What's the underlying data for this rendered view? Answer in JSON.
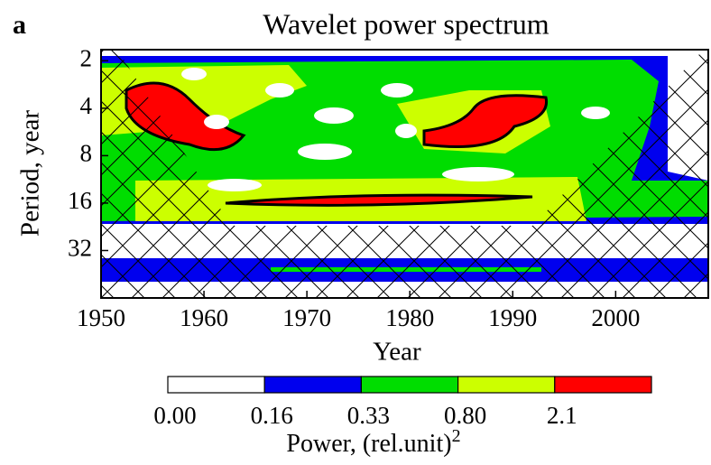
{
  "chart_data": {
    "type": "contour",
    "panel_label": "a",
    "title": "Wavelet power spectrum",
    "x_label": "Year",
    "y_label": "Period, year",
    "xlim": [
      1950,
      2009
    ],
    "xticks": [
      1950,
      1960,
      1970,
      1980,
      1990,
      2000
    ],
    "ylim": [
      1.7,
      64
    ],
    "yticks": [
      2,
      4,
      8,
      16,
      32
    ],
    "y_log_base": 2,
    "y_inverted": true,
    "colorbar": {
      "label": "Power, (rel.unit)",
      "label_exponent": "2",
      "levels": [
        {
          "value": 0,
          "label": "0.00"
        },
        0.16,
        0.33,
        {
          "value": 0.8,
          "label": "0.80"
        },
        2.1
      ],
      "colors": [
        "#ffffff",
        "#0000ee",
        "#00dd00",
        "#ccff00",
        "#ff0000"
      ]
    }
  }
}
